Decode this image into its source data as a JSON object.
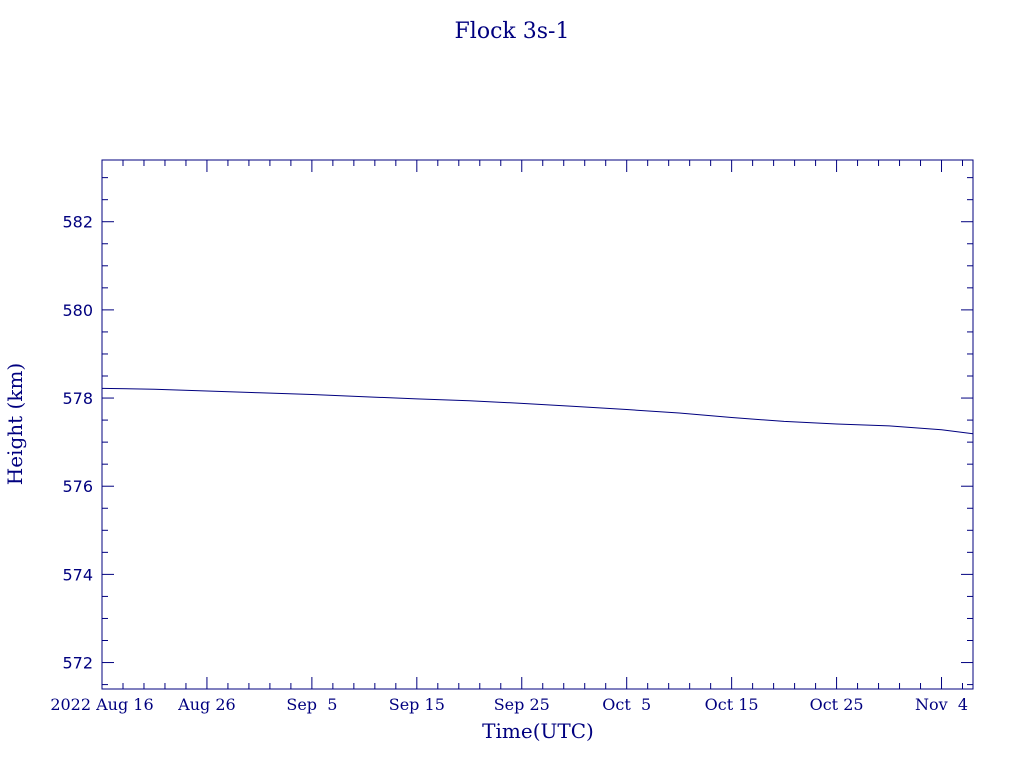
{
  "chart_data": {
    "type": "line",
    "title": "Flock 3s-1",
    "xlabel": "Time(UTC)",
    "ylabel": "Height (km)",
    "xlim": [
      "2022-08-16",
      "2022-11-07"
    ],
    "ylim": [
      571.4,
      583.4
    ],
    "grid": false,
    "color": "#00007f",
    "x_ticks": [
      {
        "date": "2022-08-16",
        "label": "2022 Aug 16"
      },
      {
        "date": "2022-08-26",
        "label": "Aug 26"
      },
      {
        "date": "2022-09-05",
        "label": "Sep  5"
      },
      {
        "date": "2022-09-15",
        "label": "Sep 15"
      },
      {
        "date": "2022-09-25",
        "label": "Sep 25"
      },
      {
        "date": "2022-10-05",
        "label": "Oct  5"
      },
      {
        "date": "2022-10-15",
        "label": "Oct 15"
      },
      {
        "date": "2022-10-25",
        "label": "Oct 25"
      },
      {
        "date": "2022-11-04",
        "label": "Nov  4"
      }
    ],
    "y_ticks": [
      572,
      574,
      576,
      578,
      580,
      582
    ],
    "series": [
      {
        "x": [
          "2022-08-16",
          "2022-08-21",
          "2022-08-26",
          "2022-08-31",
          "2022-09-05",
          "2022-09-10",
          "2022-09-15",
          "2022-09-20",
          "2022-09-25",
          "2022-09-30",
          "2022-10-05",
          "2022-10-10",
          "2022-10-15",
          "2022-10-20",
          "2022-10-25",
          "2022-10-30",
          "2022-11-04",
          "2022-11-07"
        ],
        "y": [
          578.22,
          578.2,
          578.16,
          578.12,
          578.08,
          578.03,
          577.98,
          577.94,
          577.88,
          577.81,
          577.74,
          577.66,
          577.56,
          577.47,
          577.41,
          577.37,
          577.28,
          577.19
        ]
      }
    ]
  }
}
